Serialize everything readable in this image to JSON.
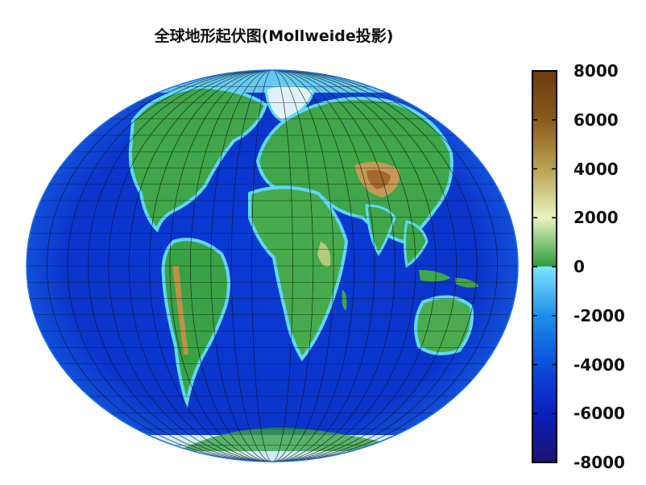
{
  "title": "全球地形起伏图(Mollweide投影)",
  "colorbar": {
    "ticks": [
      "8000",
      "6000",
      "4000",
      "2000",
      "0",
      "-2000",
      "-4000",
      "-6000",
      "-8000"
    ],
    "values": [
      8000,
      6000,
      4000,
      2000,
      0,
      -2000,
      -4000,
      -6000,
      -8000
    ],
    "range": [
      -8000,
      8000
    ],
    "stops": [
      {
        "v": 8000,
        "color": "#6b3a0e"
      },
      {
        "v": 6000,
        "color": "#8a5a1e"
      },
      {
        "v": 4000,
        "color": "#b8a24e"
      },
      {
        "v": 2000,
        "color": "#e8f3c0"
      },
      {
        "v": 0,
        "color": "#2e9b3e"
      },
      {
        "v": 0,
        "color": "#7fe3ff"
      },
      {
        "v": -2000,
        "color": "#1e8fe8"
      },
      {
        "v": -4000,
        "color": "#0a4fdc"
      },
      {
        "v": -6000,
        "color": "#0a1fbe"
      },
      {
        "v": -8000,
        "color": "#1a1270"
      }
    ]
  },
  "colors": {
    "ocean_deep": "#0b2fc4",
    "ocean": "#1552e0",
    "shelf": "#4ad1f5",
    "lowland": "#3aa246",
    "upland": "#c8d98a",
    "highland": "#b5813a",
    "ice": "#dff2f8"
  }
}
